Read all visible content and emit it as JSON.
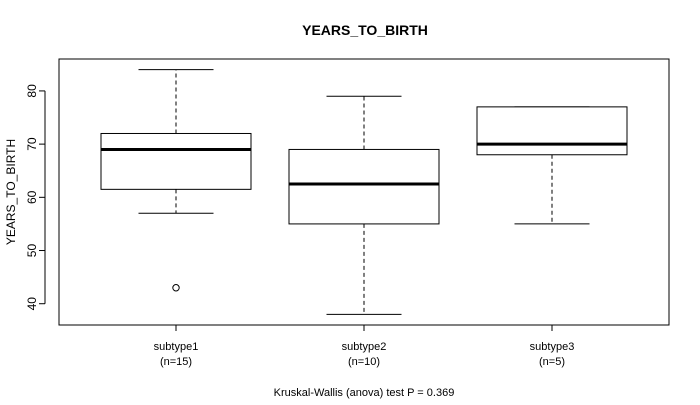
{
  "chart_data": {
    "type": "boxplot",
    "title": "YEARS_TO_BIRTH",
    "ylabel": "YEARS_TO_BIRTH",
    "xlabel": "",
    "ylim": [
      36,
      86
    ],
    "yticks": [
      40,
      50,
      60,
      70,
      80
    ],
    "grid": false,
    "legend": "none",
    "categories": [
      {
        "label": "subtype1",
        "n_label": "(n=15)"
      },
      {
        "label": "subtype2",
        "n_label": "(n=10)"
      },
      {
        "label": "subtype3",
        "n_label": "(n=5)"
      }
    ],
    "boxes": [
      {
        "whisker_low": 57,
        "q1": 61.5,
        "median": 69,
        "q3": 72,
        "whisker_high": 84,
        "outliers": [
          43
        ]
      },
      {
        "whisker_low": 38,
        "q1": 55,
        "median": 62.5,
        "q3": 69,
        "whisker_high": 79,
        "outliers": []
      },
      {
        "whisker_low": 55,
        "q1": 68,
        "median": 70,
        "q3": 77,
        "whisker_high": 77,
        "outliers": []
      }
    ],
    "footer": "Kruskal-Wallis (anova) test P = 0.369"
  }
}
